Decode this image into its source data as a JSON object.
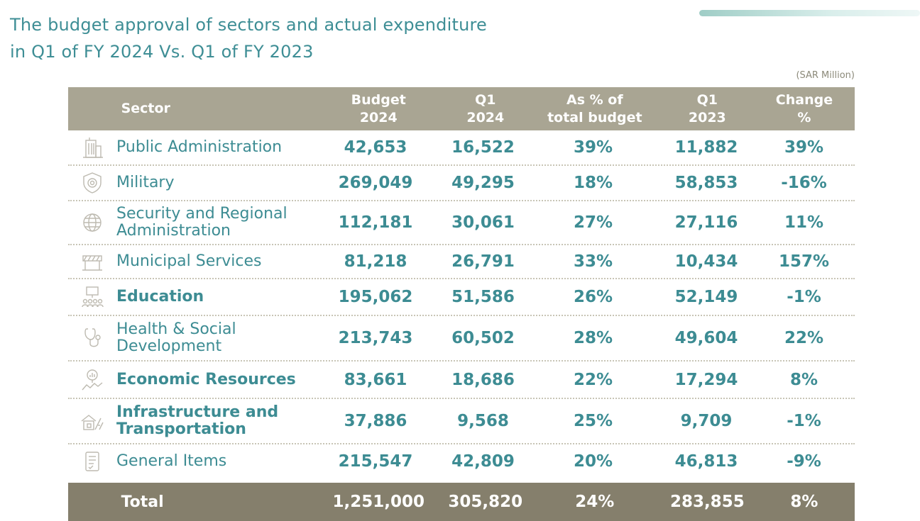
{
  "title": {
    "line1": "The budget approval of sectors and actual expenditure",
    "line2": "in Q1 of FY 2024 Vs. Q1 of FY 2023"
  },
  "unit": "(SAR Million)",
  "header": {
    "sector": "Sector",
    "budget_line1": "Budget",
    "budget_line2": "2024",
    "q1_2024_line1": "Q1",
    "q1_2024_line2": "2024",
    "pct_line1": "As % of",
    "pct_line2": "total budget",
    "q1_2023_line1": "Q1",
    "q1_2023_line2": "2023",
    "change_line1": "Change",
    "change_line2": "%"
  },
  "rows": [
    {
      "icon": "building-icon",
      "sector_line1": "Public Administration",
      "sector_line2": "",
      "budget": "42,653",
      "q1_2024": "16,522",
      "pct": "39%",
      "q1_2023": "11,882",
      "change": "39%"
    },
    {
      "icon": "shield-icon",
      "sector_line1": "Military",
      "sector_line2": "",
      "budget": "269,049",
      "q1_2024": "49,295",
      "pct": "18%",
      "q1_2023": "58,853",
      "change": "-16%"
    },
    {
      "icon": "globe-icon",
      "sector_line1": "Security and Regional",
      "sector_line2": "Administration",
      "budget": "112,181",
      "q1_2024": "30,061",
      "pct": "27%",
      "q1_2023": "27,116",
      "change": "11%"
    },
    {
      "icon": "barrier-icon",
      "sector_line1": "Municipal Services",
      "sector_line2": "",
      "budget": "81,218",
      "q1_2024": "26,791",
      "pct": "33%",
      "q1_2023": "10,434",
      "change": "157%"
    },
    {
      "icon": "classroom-icon",
      "sector_line1": "Education",
      "sector_line2": "",
      "budget": "195,062",
      "q1_2024": "51,586",
      "pct": "26%",
      "q1_2023": "52,149",
      "change": "-1%"
    },
    {
      "icon": "stethoscope-icon",
      "sector_line1": "Health & Social",
      "sector_line2": "Development",
      "budget": "213,743",
      "q1_2024": "60,502",
      "pct": "28%",
      "q1_2023": "49,604",
      "change": "22%"
    },
    {
      "icon": "magnifier-chart-icon",
      "sector_line1": "Economic Resources",
      "sector_line2": "",
      "budget": "83,661",
      "q1_2024": "18,686",
      "pct": "22%",
      "q1_2023": "17,294",
      "change": "8%"
    },
    {
      "icon": "house-road-icon",
      "sector_line1": "Infrastructure and",
      "sector_line2": "Transportation",
      "budget": "37,886",
      "q1_2024": "9,568",
      "pct": "25%",
      "q1_2023": "9,709",
      "change": "-1%"
    },
    {
      "icon": "document-list-icon",
      "sector_line1": "General Items",
      "sector_line2": "",
      "budget": "215,547",
      "q1_2024": "42,809",
      "pct": "20%",
      "q1_2023": "46,813",
      "change": "-9%"
    }
  ],
  "total": {
    "label": "Total",
    "budget": "1,251,000",
    "q1_2024": "305,820",
    "pct": "24%",
    "q1_2023": "283,855",
    "change": "8%"
  },
  "colors": {
    "title": "#3e8e95",
    "header_bg": "#a9a593",
    "total_bg": "#857f6c",
    "body_text": "#3d8c93",
    "icon_stroke": "#bdbab0"
  }
}
